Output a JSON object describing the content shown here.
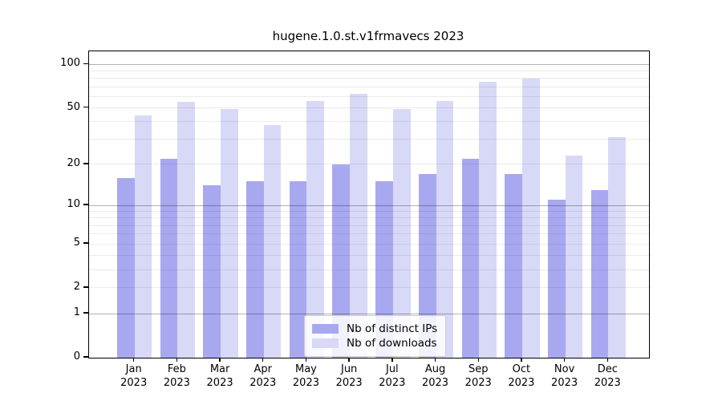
{
  "chart_data": {
    "type": "bar",
    "title": "hugene.1.0.st.v1frmavecs 2023",
    "categories": [
      "Jan 2023",
      "Feb 2023",
      "Mar 2023",
      "Apr 2023",
      "May 2023",
      "Jun 2023",
      "Jul 2023",
      "Aug 2023",
      "Sep 2023",
      "Oct 2023",
      "Nov 2023",
      "Dec 2023"
    ],
    "series": [
      {
        "name": "Nb of distinct IPs",
        "color": "#a8a8f0",
        "values": [
          16,
          22,
          14,
          15,
          15,
          20,
          15,
          17,
          22,
          17,
          11,
          13
        ]
      },
      {
        "name": "Nb of downloads",
        "color": "#d8d8f7",
        "values": [
          44,
          55,
          49,
          38,
          56,
          63,
          49,
          56,
          76,
          80,
          23,
          31
        ]
      }
    ],
    "xlabel": "",
    "ylabel": "",
    "yscale": "log1p",
    "ylim": [
      0,
      123
    ],
    "ytick_labels": [
      0,
      1,
      2,
      5,
      10,
      20,
      50,
      100
    ],
    "major_gridlines": [
      1,
      10,
      100
    ],
    "minor_gridlines": [
      2,
      3,
      4,
      5,
      6,
      7,
      8,
      9,
      20,
      30,
      40,
      50,
      60,
      70,
      80,
      90
    ],
    "grid": "on",
    "legend_position": "lower-center-inside",
    "bar_grouping": "grouped-pairs"
  }
}
